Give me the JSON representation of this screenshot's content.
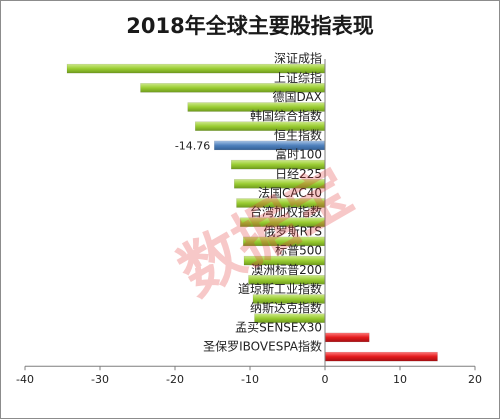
{
  "chart_data": {
    "type": "bar",
    "orientation": "horizontal",
    "title": "2018年全球主要股指表现",
    "xlabel": "",
    "ylabel": "",
    "xlim": [
      -40,
      20
    ],
    "xticks": [
      -40,
      -30,
      -20,
      -10,
      0,
      10,
      20
    ],
    "grid": false,
    "legend": "none",
    "categories": [
      "深证成指",
      "上证综指",
      "德国DAX",
      "韩国综合指数",
      "恒生指数",
      "富时100",
      "日经225",
      "法国CAC40",
      "台湾加权指数",
      "俄罗斯RTS",
      "标普500",
      "澳洲标普200",
      "道琼斯工业指数",
      "纳斯达克指数",
      "孟买SENSEX30",
      "圣保罗IBOVESPA指数"
    ],
    "values": [
      -34.4,
      -24.6,
      -18.3,
      -17.3,
      -14.76,
      -12.5,
      -12.1,
      -11.8,
      -11.3,
      -10.9,
      -10.8,
      -10.2,
      -9.6,
      -9.4,
      5.9,
      15.0
    ],
    "colors": [
      "#9acd32",
      "#9acd32",
      "#9acd32",
      "#9acd32",
      "#4f81bd",
      "#9acd32",
      "#9acd32",
      "#9acd32",
      "#9acd32",
      "#9acd32",
      "#9acd32",
      "#9acd32",
      "#9acd32",
      "#9acd32",
      "#e31a1c",
      "#e31a1c"
    ],
    "data_labels": {
      "4": "-14.76"
    }
  },
  "watermark": "数据宝"
}
